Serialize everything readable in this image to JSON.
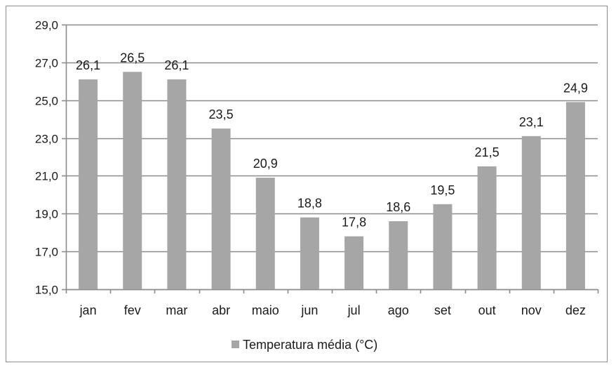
{
  "chart_data": {
    "type": "bar",
    "categories": [
      "jan",
      "fev",
      "mar",
      "abr",
      "maio",
      "jun",
      "jul",
      "ago",
      "set",
      "out",
      "nov",
      "dez"
    ],
    "series": [
      {
        "name": "Temperatura média (°C)",
        "values": [
          26.1,
          26.5,
          26.1,
          23.5,
          20.9,
          18.8,
          17.8,
          18.6,
          19.5,
          21.5,
          23.1,
          24.9
        ],
        "labels": [
          "26,1",
          "26,5",
          "26,1",
          "23,5",
          "20,9",
          "18,8",
          "17,8",
          "18,6",
          "19,5",
          "21,5",
          "23,1",
          "24,9"
        ],
        "color": "#a6a6a6"
      }
    ],
    "ylim": [
      15,
      29
    ],
    "yticks": [
      "15,0",
      "17,0",
      "19,0",
      "21,0",
      "23,0",
      "25,0",
      "27,0",
      "29,0"
    ],
    "ytick_values": [
      15,
      17,
      19,
      21,
      23,
      25,
      27,
      29
    ],
    "grid": true,
    "grid_color": "#8c8c8c",
    "legend_position": "bottom",
    "title": "",
    "xlabel": "",
    "ylabel": ""
  }
}
